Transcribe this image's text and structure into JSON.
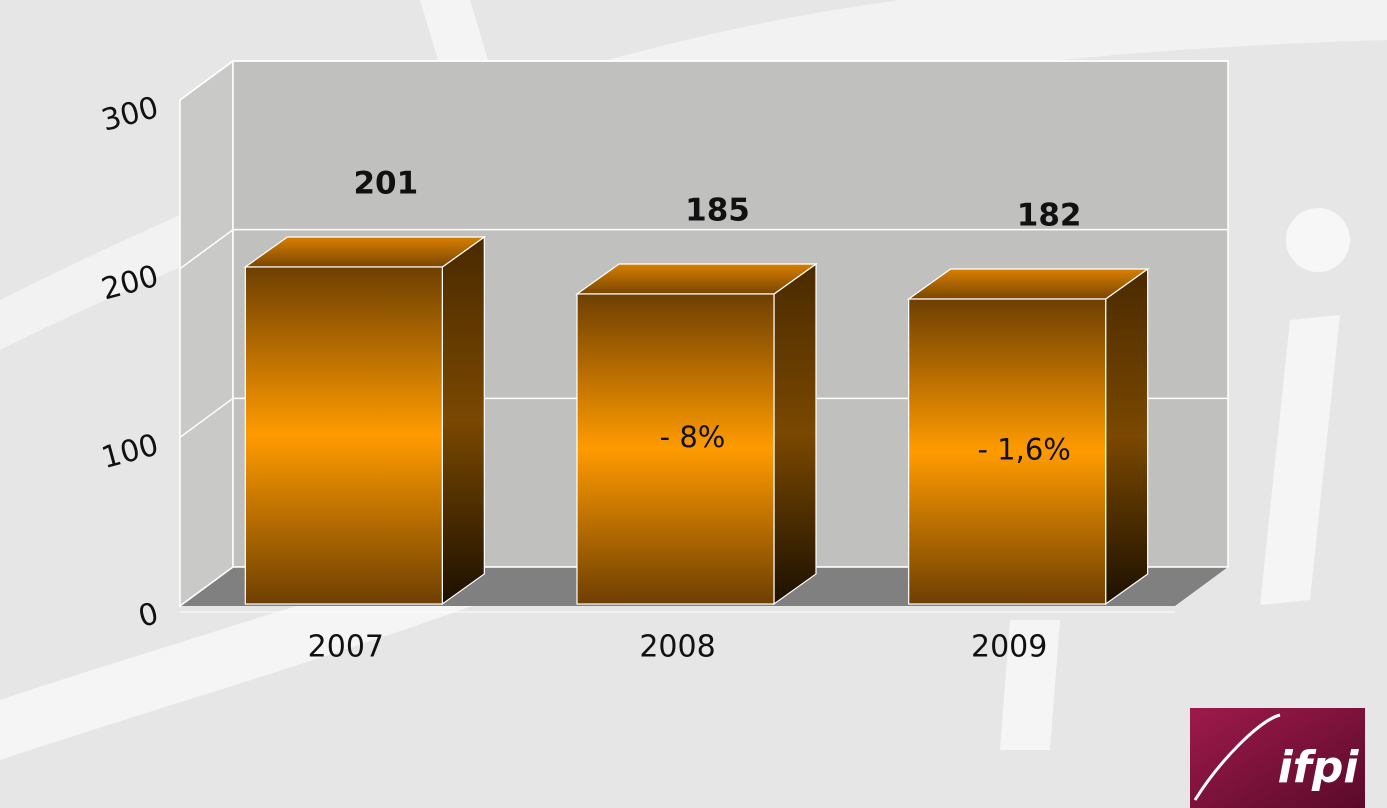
{
  "chart_data": {
    "type": "bar3d",
    "categories": [
      "2007",
      "2008",
      "2009"
    ],
    "values": [
      201,
      185,
      182
    ],
    "change_labels": [
      null,
      "- 8%",
      "- 1,6%"
    ],
    "ylim": [
      0,
      300
    ],
    "yticks": [
      0,
      100,
      200,
      300
    ],
    "grid": true,
    "color": "#ff9a00"
  },
  "logo": "ifpi"
}
